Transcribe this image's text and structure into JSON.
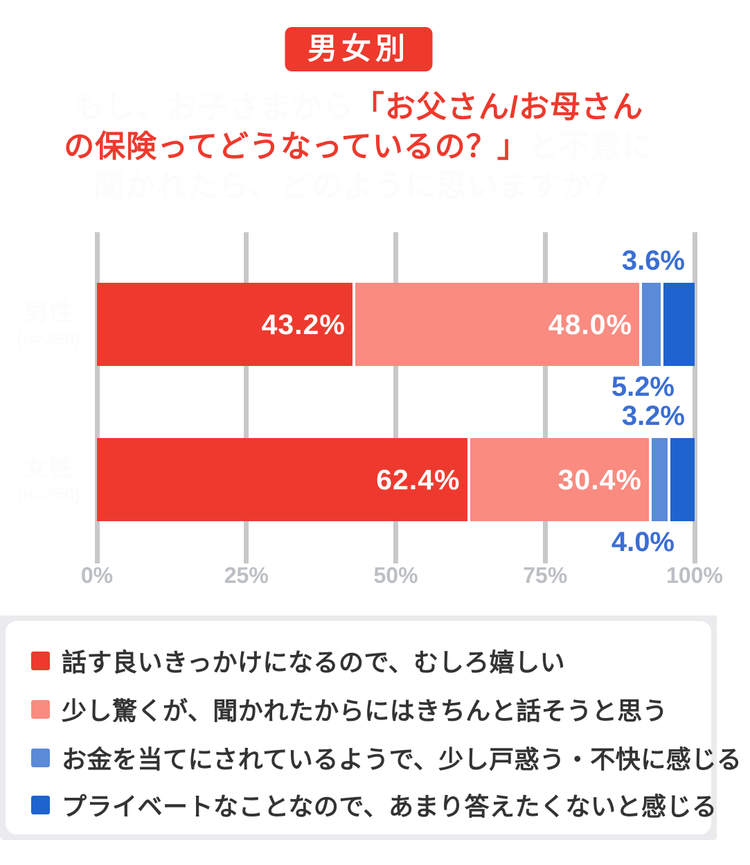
{
  "badge": {
    "label": "男女別",
    "bg_color": "#ee392d",
    "text_color": "#ffffff"
  },
  "title": {
    "line1_white": "もし、お子さまから",
    "line1_red": "「お父さん/お母さん",
    "line2_red": "の保険ってどうなっているの？」",
    "line2_white": "と不意に",
    "line3_white": "聞かれたら、どのように思いますか？",
    "red_color": "#ee392d",
    "white_color": "#fcfcfc"
  },
  "chart_data": {
    "type": "bar",
    "orientation": "horizontal-stacked",
    "xlim": [
      0,
      100
    ],
    "grid": true,
    "tick_labels": [
      "0%",
      "25%",
      "50%",
      "75%",
      "100%"
    ],
    "tick_values": [
      0,
      25,
      50,
      75,
      100
    ],
    "categories": [
      "男性",
      "女性"
    ],
    "category_n_labels": [
      "(n=250)",
      "(n=250)"
    ],
    "series": [
      {
        "name": "話す良いきっかけになるので、むしろ嬉しい",
        "color": "#ee3a2e",
        "values": [
          43.2,
          62.4
        ]
      },
      {
        "name": "少し驚くが、聞かれたからにはきちんと話そうと思う",
        "color": "#f98b80",
        "values": [
          48.0,
          30.4
        ]
      },
      {
        "name": "お金を当てにされているようで、少し戸惑う・不快に感じる",
        "color": "#5a8ad8",
        "values": [
          3.6,
          3.2
        ]
      },
      {
        "name": "プライベートなことなので、あまり答えたくないと感じる",
        "color": "#1e63cf",
        "values": [
          5.2,
          4.0
        ]
      }
    ],
    "bars": [
      {
        "category": "男性",
        "n_label": "(n=250)",
        "segments": [
          {
            "value": 43.2,
            "label": "43.2%",
            "placement": "inside"
          },
          {
            "value": 48.0,
            "label": "48.0%",
            "placement": "inside"
          },
          {
            "value": 3.6,
            "label": "3.6%",
            "placement": "above"
          },
          {
            "value": 5.2,
            "label": "5.2%",
            "placement": "below"
          }
        ]
      },
      {
        "category": "女性",
        "n_label": "(n=250)",
        "segments": [
          {
            "value": 62.4,
            "label": "62.4%",
            "placement": "inside"
          },
          {
            "value": 30.4,
            "label": "30.4%",
            "placement": "inside"
          },
          {
            "value": 3.2,
            "label": "3.2%",
            "placement": "above"
          },
          {
            "value": 4.0,
            "label": "4.0%",
            "placement": "below"
          }
        ]
      }
    ],
    "outside_label_color": "#3b6ed3",
    "gridline_color": "#c8c8ca",
    "tick_label_color": "#bcbfc3"
  },
  "legend": {
    "items": [
      {
        "label": "話す良いきっかけになるので、むしろ嬉しい",
        "color": "#ee3a2e"
      },
      {
        "label": "少し驚くが、聞かれたからにはきちんと話そうと思う",
        "color": "#f98b80"
      },
      {
        "label": "お金を当てにされているようで、少し戸惑う・不快に感じる",
        "color": "#5a8ad8"
      },
      {
        "label": "プライベートなことなので、あまり答えたくないと感じる",
        "color": "#1e63cf"
      }
    ],
    "panel_color": "#ebebee",
    "card_color": "#ffffff",
    "text_color": "#333333"
  }
}
